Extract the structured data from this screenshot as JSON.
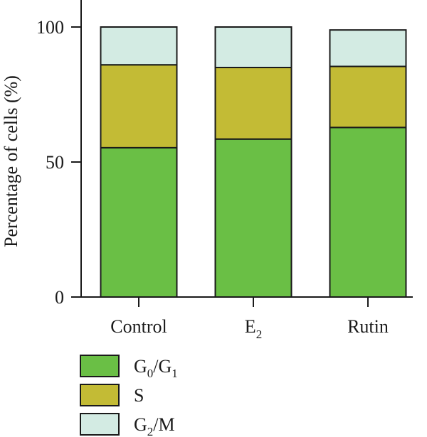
{
  "chart_data": {
    "type": "bar",
    "stacked": true,
    "categories": [
      {
        "base": "Control",
        "sub": ""
      },
      {
        "base": "E",
        "sub": "2"
      },
      {
        "base": "Rutin",
        "sub": ""
      }
    ],
    "series": [
      {
        "name": "G0/G1",
        "label_parts": [
          [
            "G",
            ""
          ],
          [
            "0",
            "sub"
          ],
          [
            "/G",
            ""
          ],
          [
            "1",
            "sub"
          ]
        ],
        "color": "#6abf45",
        "values": [
          55.3,
          58.5,
          62.8
        ]
      },
      {
        "name": "S",
        "label_parts": [
          [
            "S",
            ""
          ]
        ],
        "color": "#c3bb35",
        "values": [
          30.7,
          26.5,
          22.6
        ]
      },
      {
        "name": "G2/M",
        "label_parts": [
          [
            "G",
            ""
          ],
          [
            "2",
            "sub"
          ],
          [
            "/M",
            ""
          ]
        ],
        "color": "#d3ebe3",
        "values": [
          14.0,
          15.0,
          13.5
        ]
      }
    ],
    "ylabel": "Percentage of cells (%)",
    "ylim": [
      0,
      110
    ],
    "yticks": [
      0,
      50,
      100
    ],
    "legend_placement": "bottom-left"
  }
}
